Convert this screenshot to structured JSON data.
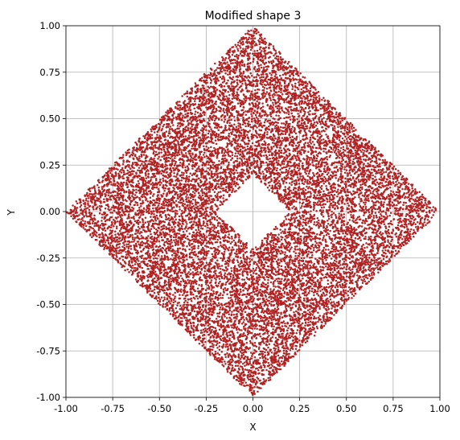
{
  "chart_data": {
    "type": "scatter",
    "title": "Modified shape 3",
    "xlabel": "X",
    "ylabel": "Y",
    "xlim": [
      -1.0,
      1.0
    ],
    "ylim": [
      -1.0,
      1.0
    ],
    "xticks": [
      "-1.00",
      "-0.75",
      "-0.50",
      "-0.25",
      "0.00",
      "0.25",
      "0.50",
      "0.75",
      "1.00"
    ],
    "yticks": [
      "-1.00",
      "-0.75",
      "-0.50",
      "-0.25",
      "0.00",
      "0.25",
      "0.50",
      "0.75",
      "1.00"
    ],
    "tick_values": [
      -1.0,
      -0.75,
      -0.5,
      -0.25,
      0.0,
      0.25,
      0.5,
      0.75,
      1.0
    ],
    "grid": true,
    "marker_color": "#b22222",
    "series": [
      {
        "shape": "diamond region |x|+|y| <= 1 with diamond hole |x|+|y| < 0.2",
        "outer_radius_l1": 1.0,
        "inner_radius_l1": 0.2,
        "approx_point_count": 15000
      }
    ]
  }
}
